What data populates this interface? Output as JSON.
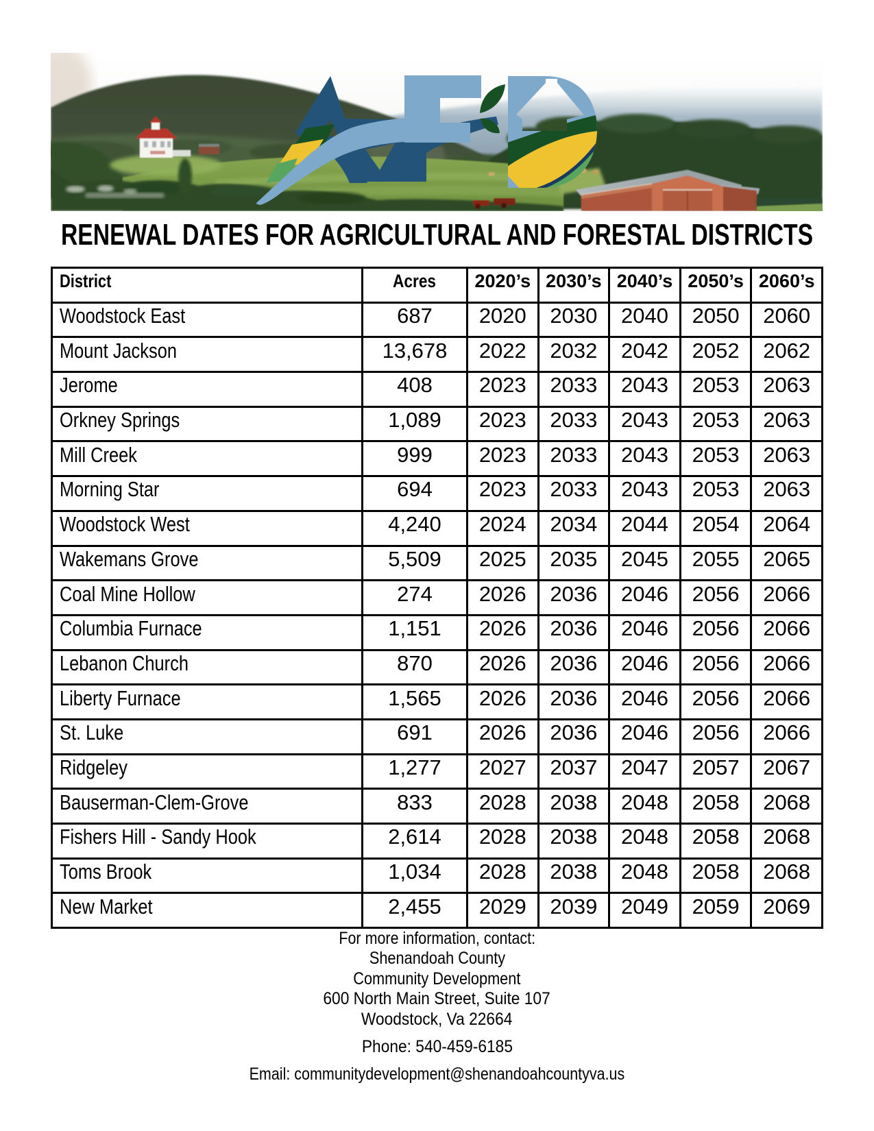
{
  "title": "RENEWAL DATES FOR AGRICULTURAL AND FORESTAL DISTRICTS",
  "hero": {
    "logo_letters": "AFD",
    "scene": "farm landscape with mountains, white house with red roof, red barn",
    "colors": {
      "logo_navy": "#24537a",
      "logo_steel_blue": "#7ea9cb",
      "logo_dark_green": "#185026",
      "logo_yellow": "#eec32f",
      "logo_mid_green": "#58a55f"
    }
  },
  "table": {
    "columns": [
      "District",
      "Acres",
      "2020’s",
      "2030’s",
      "2040’s",
      "2050’s",
      "2060’s"
    ],
    "rows": [
      {
        "district": "Woodstock East",
        "acres": "687",
        "renewals": [
          "2020",
          "2030",
          "2040",
          "2050",
          "2060"
        ]
      },
      {
        "district": "Mount Jackson",
        "acres": "13,678",
        "renewals": [
          "2022",
          "2032",
          "2042",
          "2052",
          "2062"
        ]
      },
      {
        "district": "Jerome",
        "acres": "408",
        "renewals": [
          "2023",
          "2033",
          "2043",
          "2053",
          "2063"
        ]
      },
      {
        "district": "Orkney Springs",
        "acres": "1,089",
        "renewals": [
          "2023",
          "2033",
          "2043",
          "2053",
          "2063"
        ]
      },
      {
        "district": "Mill Creek",
        "acres": "999",
        "renewals": [
          "2023",
          "2033",
          "2043",
          "2053",
          "2063"
        ]
      },
      {
        "district": "Morning Star",
        "acres": "694",
        "renewals": [
          "2023",
          "2033",
          "2043",
          "2053",
          "2063"
        ]
      },
      {
        "district": "Woodstock West",
        "acres": "4,240",
        "renewals": [
          "2024",
          "2034",
          "2044",
          "2054",
          "2064"
        ]
      },
      {
        "district": "Wakemans Grove",
        "acres": "5,509",
        "renewals": [
          "2025",
          "2035",
          "2045",
          "2055",
          "2065"
        ]
      },
      {
        "district": "Coal Mine Hollow",
        "acres": "274",
        "renewals": [
          "2026",
          "2036",
          "2046",
          "2056",
          "2066"
        ]
      },
      {
        "district": "Columbia Furnace",
        "acres": "1,151",
        "renewals": [
          "2026",
          "2036",
          "2046",
          "2056",
          "2066"
        ]
      },
      {
        "district": "Lebanon Church",
        "acres": "870",
        "renewals": [
          "2026",
          "2036",
          "2046",
          "2056",
          "2066"
        ]
      },
      {
        "district": "Liberty Furnace",
        "acres": "1,565",
        "renewals": [
          "2026",
          "2036",
          "2046",
          "2056",
          "2066"
        ]
      },
      {
        "district": "St. Luke",
        "acres": "691",
        "renewals": [
          "2026",
          "2036",
          "2046",
          "2056",
          "2066"
        ]
      },
      {
        "district": "Ridgeley",
        "acres": "1,277",
        "renewals": [
          "2027",
          "2037",
          "2047",
          "2057",
          "2067"
        ]
      },
      {
        "district": "Bauserman-Clem-Grove",
        "acres": "833",
        "renewals": [
          "2028",
          "2038",
          "2048",
          "2058",
          "2068"
        ]
      },
      {
        "district": "Fishers Hill - Sandy Hook",
        "acres": "2,614",
        "renewals": [
          "2028",
          "2038",
          "2048",
          "2058",
          "2068"
        ]
      },
      {
        "district": "Toms Brook",
        "acres": "1,034",
        "renewals": [
          "2028",
          "2038",
          "2048",
          "2058",
          "2068"
        ]
      },
      {
        "district": "New Market",
        "acres": "2,455",
        "renewals": [
          "2029",
          "2039",
          "2049",
          "2059",
          "2069"
        ]
      }
    ]
  },
  "contact": {
    "lines": [
      "For more information, contact:",
      "Shenandoah County",
      "Community Development",
      "600 North Main Street, Suite 107",
      "Woodstock, Va 22664"
    ],
    "phone": "Phone: 540-459-6185",
    "email": "Email: communitydevelopment@shenandoahcountyva.us"
  }
}
